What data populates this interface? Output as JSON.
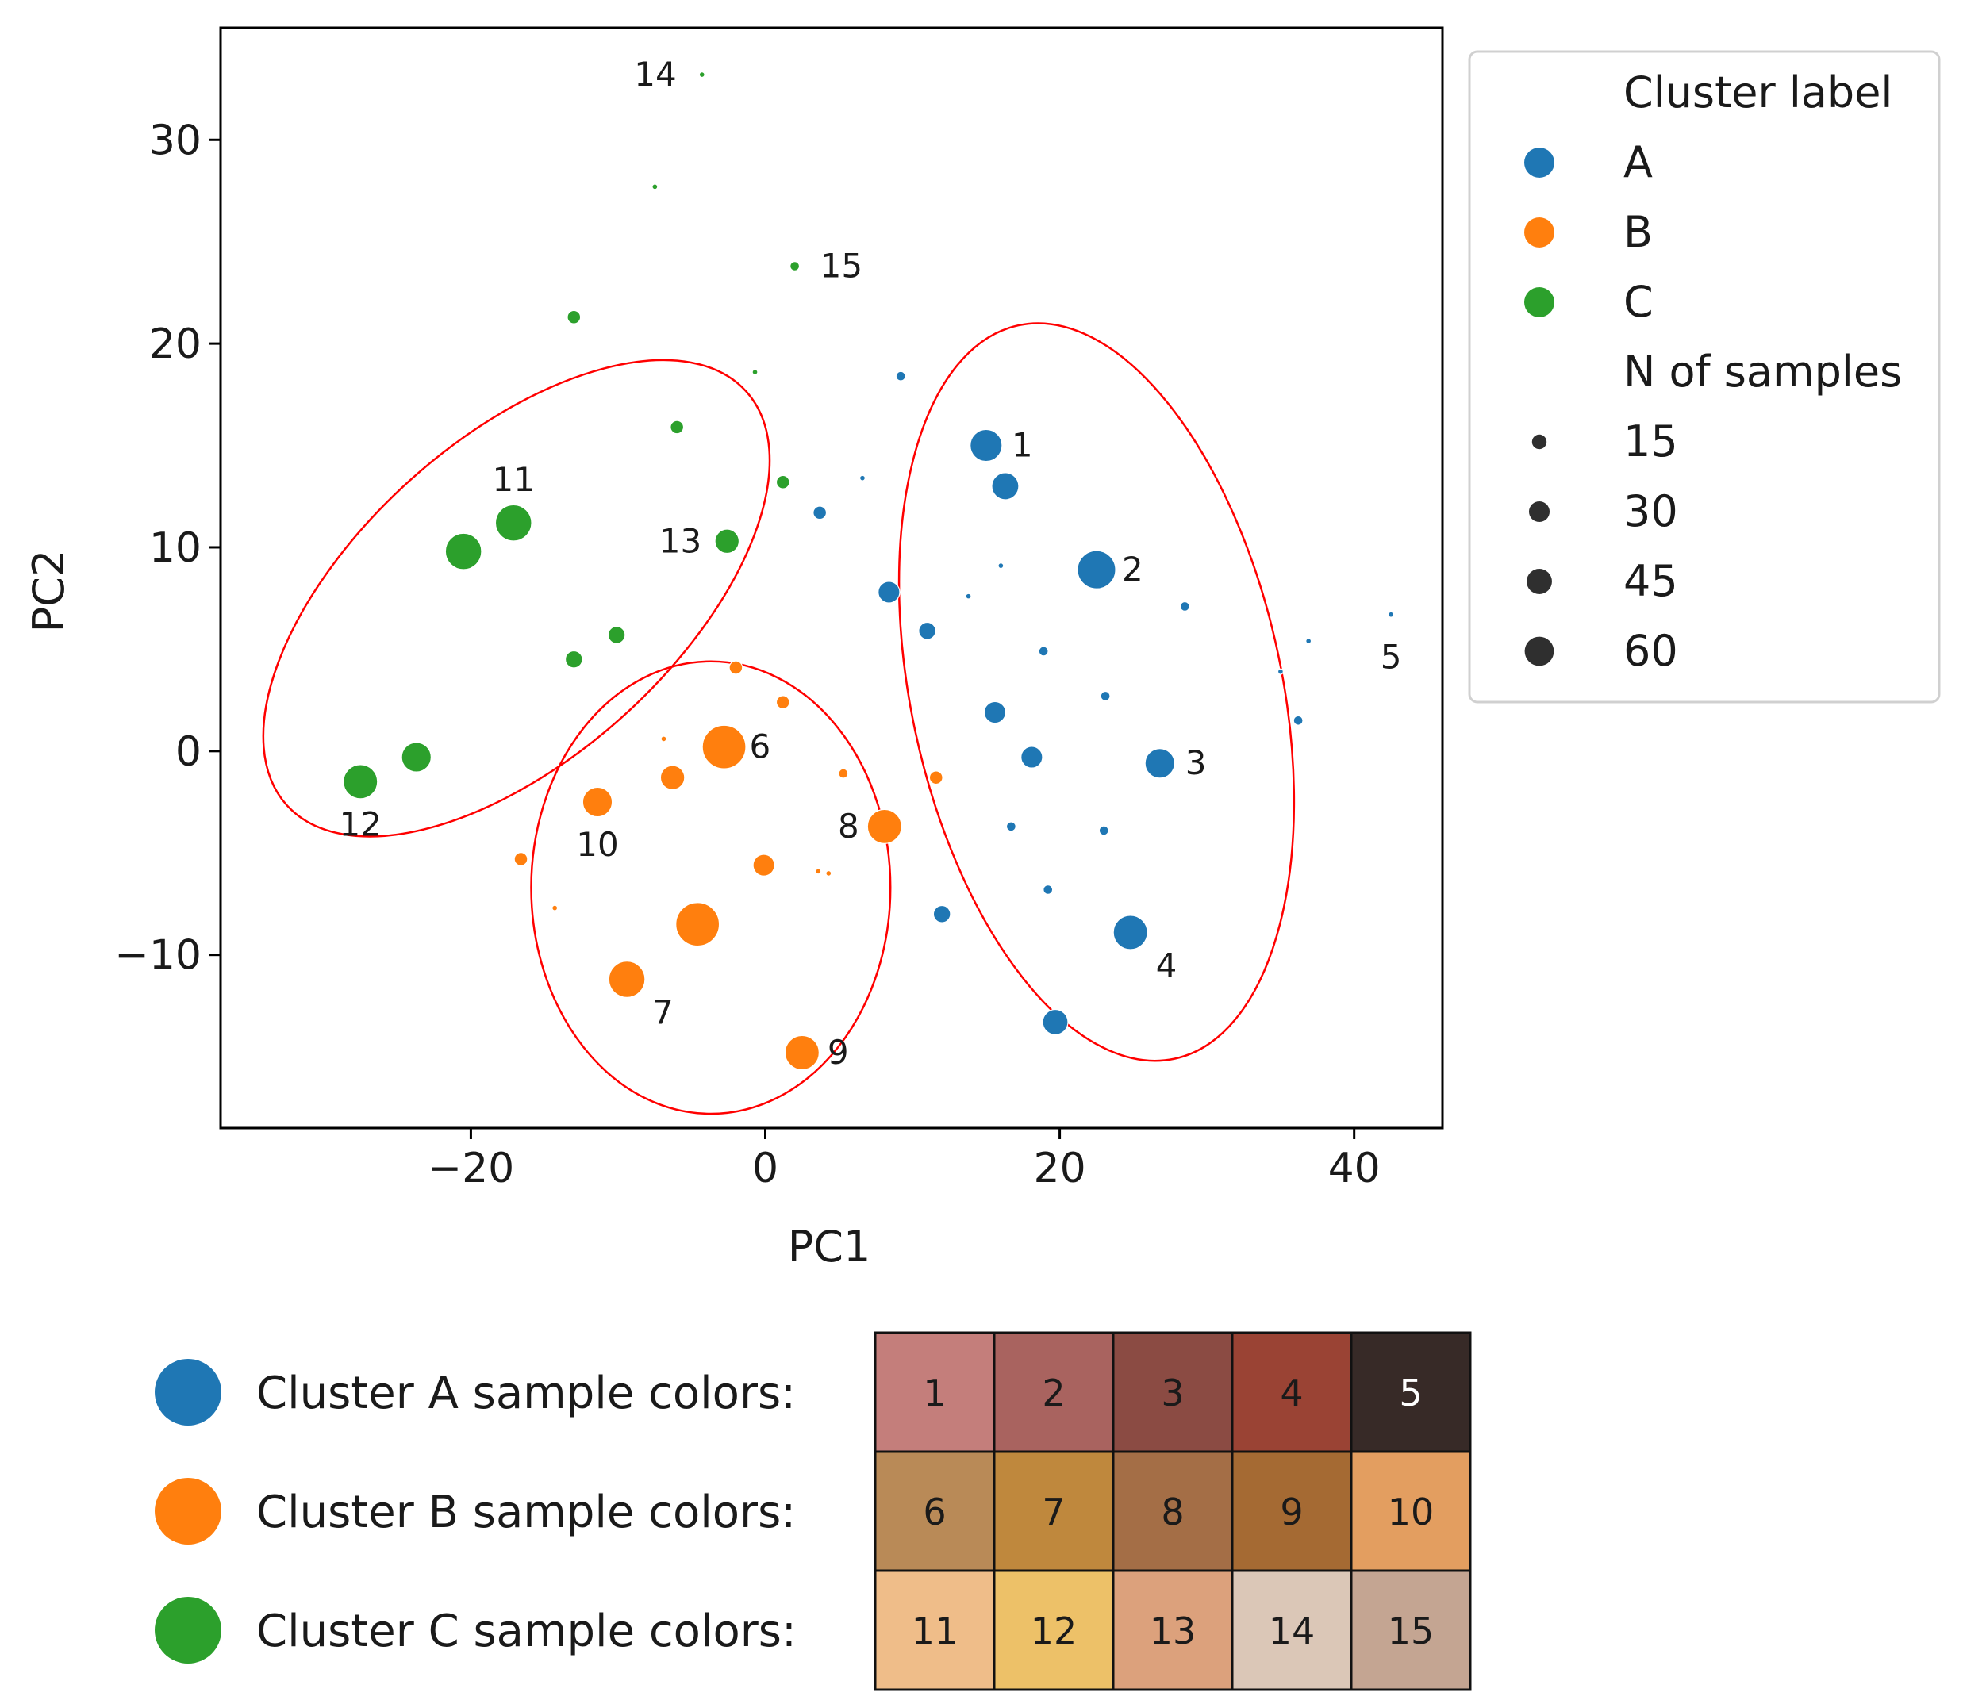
{
  "chart_data": {
    "type": "scatter",
    "xlabel": "PC1",
    "ylabel": "PC2",
    "xlim": [
      -37,
      46
    ],
    "ylim": [
      -18.5,
      35.5
    ],
    "xticks": [
      -20,
      0,
      20,
      40
    ],
    "yticks": [
      -10,
      0,
      10,
      20,
      30
    ],
    "grid": false,
    "colors": {
      "A": "#1f77b4",
      "B": "#ff7f0e",
      "C": "#2ca02c",
      "ellipse": "#ff0000"
    },
    "legend": {
      "position": "outside-right",
      "hue_title": "Cluster label",
      "hue_entries": [
        "A",
        "B",
        "C"
      ],
      "size_title": "N of samples",
      "size_entries": [
        "15",
        "30",
        "45",
        "60"
      ],
      "size_values": [
        15,
        30,
        45,
        60
      ]
    },
    "series": [
      {
        "name": "A",
        "points": [
          {
            "x": 15.0,
            "y": 15.0,
            "n": 35
          },
          {
            "x": 16.3,
            "y": 13.0,
            "n": 25
          },
          {
            "x": 22.5,
            "y": 8.9,
            "n": 50
          },
          {
            "x": 26.8,
            "y": -0.6,
            "n": 30
          },
          {
            "x": 24.8,
            "y": -8.9,
            "n": 40
          },
          {
            "x": 19.7,
            "y": -13.3,
            "n": 22
          },
          {
            "x": 8.4,
            "y": 7.8,
            "n": 16
          },
          {
            "x": 11.0,
            "y": 5.9,
            "n": 10
          },
          {
            "x": 15.6,
            "y": 1.9,
            "n": 16
          },
          {
            "x": 18.1,
            "y": -0.3,
            "n": 16
          },
          {
            "x": 12.0,
            "y": -8.0,
            "n": 10
          },
          {
            "x": 3.7,
            "y": 11.7,
            "n": 6
          },
          {
            "x": 9.2,
            "y": 18.4,
            "n": 3
          },
          {
            "x": 6.6,
            "y": 13.4,
            "n": 1
          },
          {
            "x": 16.0,
            "y": 9.1,
            "n": 1
          },
          {
            "x": 13.8,
            "y": 7.6,
            "n": 1
          },
          {
            "x": 18.9,
            "y": 4.9,
            "n": 3
          },
          {
            "x": 23.1,
            "y": 2.7,
            "n": 3
          },
          {
            "x": 28.5,
            "y": 7.1,
            "n": 3
          },
          {
            "x": 16.7,
            "y": -3.7,
            "n": 3
          },
          {
            "x": 23.0,
            "y": -3.9,
            "n": 3
          },
          {
            "x": 19.2,
            "y": -6.8,
            "n": 3
          },
          {
            "x": 35.0,
            "y": 3.9,
            "n": 1
          },
          {
            "x": 36.9,
            "y": 5.4,
            "n": 1
          },
          {
            "x": 36.2,
            "y": 1.5,
            "n": 3
          },
          {
            "x": 42.5,
            "y": 6.7,
            "n": 1
          }
        ]
      },
      {
        "name": "B",
        "points": [
          {
            "x": -2.8,
            "y": 0.2,
            "n": 65
          },
          {
            "x": -4.6,
            "y": -8.5,
            "n": 65
          },
          {
            "x": -9.4,
            "y": -11.2,
            "n": 45
          },
          {
            "x": 8.1,
            "y": -3.7,
            "n": 40
          },
          {
            "x": 2.5,
            "y": -14.8,
            "n": 40
          },
          {
            "x": -11.4,
            "y": -2.5,
            "n": 30
          },
          {
            "x": -6.3,
            "y": -1.3,
            "n": 20
          },
          {
            "x": -0.1,
            "y": -5.6,
            "n": 16
          },
          {
            "x": -16.6,
            "y": -5.3,
            "n": 6
          },
          {
            "x": -2.0,
            "y": 4.1,
            "n": 6
          },
          {
            "x": 1.2,
            "y": 2.4,
            "n": 6
          },
          {
            "x": 11.6,
            "y": -1.3,
            "n": 6
          },
          {
            "x": 5.3,
            "y": -1.1,
            "n": 3
          },
          {
            "x": -6.9,
            "y": 0.6,
            "n": 1
          },
          {
            "x": -14.3,
            "y": -7.7,
            "n": 1
          },
          {
            "x": 3.6,
            "y": -5.9,
            "n": 1
          },
          {
            "x": 4.3,
            "y": -6.0,
            "n": 1
          }
        ]
      },
      {
        "name": "C",
        "points": [
          {
            "x": -20.5,
            "y": 9.8,
            "n": 45
          },
          {
            "x": -17.1,
            "y": 11.2,
            "n": 45
          },
          {
            "x": -27.5,
            "y": -1.5,
            "n": 40
          },
          {
            "x": -23.7,
            "y": -0.3,
            "n": 30
          },
          {
            "x": -2.6,
            "y": 10.3,
            "n": 20
          },
          {
            "x": -10.1,
            "y": 5.7,
            "n": 10
          },
          {
            "x": -13.0,
            "y": 4.5,
            "n": 10
          },
          {
            "x": -6.0,
            "y": 15.9,
            "n": 6
          },
          {
            "x": 1.2,
            "y": 13.2,
            "n": 6
          },
          {
            "x": -13.0,
            "y": 21.3,
            "n": 6
          },
          {
            "x": -0.7,
            "y": 18.6,
            "n": 1
          },
          {
            "x": -7.5,
            "y": 27.7,
            "n": 1
          },
          {
            "x": -4.3,
            "y": 33.2,
            "n": 1
          },
          {
            "x": 2.0,
            "y": 23.8,
            "n": 3
          }
        ]
      }
    ],
    "annotations": [
      {
        "text": "1",
        "x": 15.0,
        "y": 15.0,
        "side": "right"
      },
      {
        "text": "2",
        "x": 22.5,
        "y": 8.9,
        "side": "right"
      },
      {
        "text": "3",
        "x": 26.8,
        "y": -0.6,
        "side": "right"
      },
      {
        "text": "4",
        "x": 24.8,
        "y": -8.9,
        "side": "right-below"
      },
      {
        "text": "5",
        "x": 42.5,
        "y": 6.7,
        "side": "below"
      },
      {
        "text": "6",
        "x": -2.8,
        "y": 0.2,
        "side": "right"
      },
      {
        "text": "7",
        "x": -9.4,
        "y": -11.2,
        "side": "right-below"
      },
      {
        "text": "8",
        "x": 8.1,
        "y": -3.7,
        "side": "left"
      },
      {
        "text": "9",
        "x": 2.5,
        "y": -14.8,
        "side": "right"
      },
      {
        "text": "10",
        "x": -11.4,
        "y": -2.5,
        "side": "below"
      },
      {
        "text": "11",
        "x": -17.1,
        "y": 11.2,
        "side": "above"
      },
      {
        "text": "12",
        "x": -27.5,
        "y": -1.5,
        "side": "below"
      },
      {
        "text": "13",
        "x": -2.6,
        "y": 10.3,
        "side": "left"
      },
      {
        "text": "14",
        "x": -4.3,
        "y": 33.2,
        "side": "left"
      },
      {
        "text": "15",
        "x": 2.0,
        "y": 23.8,
        "side": "right"
      }
    ],
    "ellipses": [
      {
        "cluster": "C",
        "cx": -16.9,
        "cy": 7.5,
        "rx": 21.0,
        "ry": 7.8,
        "angle_deg": 42
      },
      {
        "cluster": "B",
        "cx": -3.7,
        "cy": -6.7,
        "rx": 12.2,
        "ry": 11.1,
        "angle_deg": 0
      },
      {
        "cluster": "A",
        "cx": 22.5,
        "cy": 2.9,
        "rx": 12.6,
        "ry": 18.4,
        "angle_deg": 12
      }
    ]
  },
  "swatches": {
    "rows": [
      {
        "label": "Cluster A sample colors:",
        "dot_color": "#1f77b4",
        "cells": [
          {
            "num": "1",
            "color": "#c47e7b",
            "text_color": "#1a1a1a"
          },
          {
            "num": "2",
            "color": "#a9635f",
            "text_color": "#1a1a1a"
          },
          {
            "num": "3",
            "color": "#8b4b43",
            "text_color": "#1a1a1a"
          },
          {
            "num": "4",
            "color": "#9a4334",
            "text_color": "#1a1a1a"
          },
          {
            "num": "5",
            "color": "#372a27",
            "text_color": "#ffffff"
          }
        ]
      },
      {
        "label": "Cluster B sample colors:",
        "dot_color": "#ff7f0e",
        "cells": [
          {
            "num": "6",
            "color": "#b98a57",
            "text_color": "#1a1a1a"
          },
          {
            "num": "7",
            "color": "#bf883d",
            "text_color": "#1a1a1a"
          },
          {
            "num": "8",
            "color": "#a46e46",
            "text_color": "#1a1a1a"
          },
          {
            "num": "9",
            "color": "#a56a33",
            "text_color": "#1a1a1a"
          },
          {
            "num": "10",
            "color": "#e39e60",
            "text_color": "#1a1a1a"
          }
        ]
      },
      {
        "label": "Cluster C sample colors:",
        "dot_color": "#2ca02c",
        "cells": [
          {
            "num": "11",
            "color": "#efbd89",
            "text_color": "#1a1a1a"
          },
          {
            "num": "12",
            "color": "#edc168",
            "text_color": "#1a1a1a"
          },
          {
            "num": "13",
            "color": "#dca17c",
            "text_color": "#1a1a1a"
          },
          {
            "num": "14",
            "color": "#dbc7b7",
            "text_color": "#1a1a1a"
          },
          {
            "num": "15",
            "color": "#c4a592",
            "text_color": "#1a1a1a"
          }
        ]
      }
    ]
  }
}
